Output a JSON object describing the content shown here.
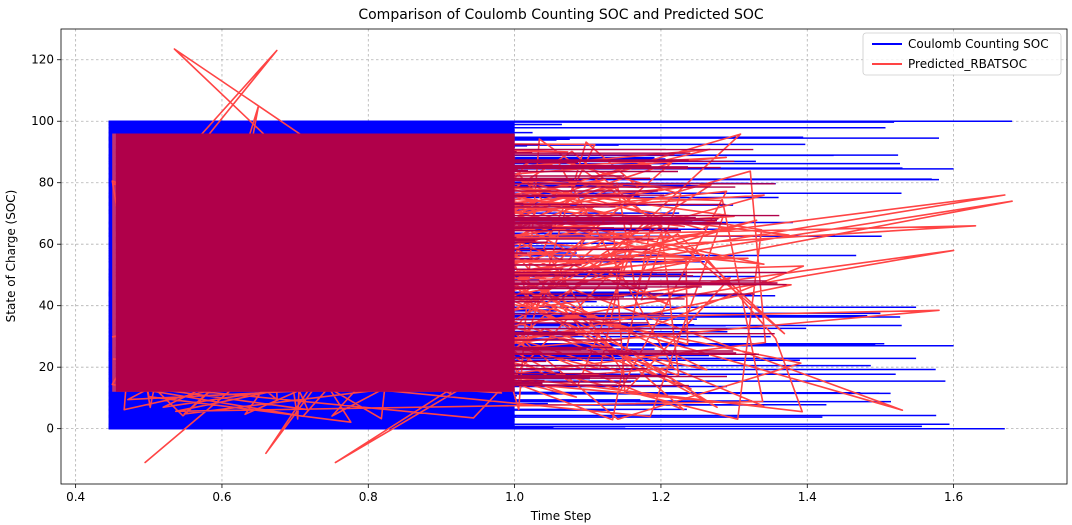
{
  "chart_data": {
    "type": "line",
    "title": "Comparison of Coulomb Counting SOC and Predicted SOC",
    "xlabel": "Time Step",
    "ylabel": "State of Charge (SOC)",
    "xlim": [
      0.38,
      1.755
    ],
    "ylim": [
      -18,
      130
    ],
    "xticks": [
      "0.4",
      "0.6",
      "0.8",
      "1.0",
      "1.2",
      "1.4",
      "1.6"
    ],
    "xtick_values": [
      0.4,
      0.6,
      0.8,
      1.0,
      1.2,
      1.4,
      1.6
    ],
    "yticks": [
      "0",
      "20",
      "40",
      "60",
      "80",
      "100",
      "120"
    ],
    "ytick_values": [
      0,
      20,
      40,
      60,
      80,
      100,
      120
    ],
    "grid": true,
    "legend_position": "top-right",
    "series": [
      {
        "name": "Coulomb Counting SOC",
        "color": "#0000ff",
        "dense_band": {
          "x": [
            0.445,
            1.0
          ],
          "y": [
            0,
            100
          ]
        },
        "extreme_points": [
          [
            0.445,
            100
          ],
          [
            1.68,
            100
          ],
          [
            0.445,
            0
          ],
          [
            1.67,
            0
          ],
          [
            1.58,
            94.5
          ],
          [
            1.6,
            84.5
          ],
          [
            1.58,
            81
          ],
          [
            1.5,
            37.5
          ],
          [
            1.6,
            27
          ]
        ]
      },
      {
        "name": "Predicted_RBATSOC",
        "color": "#ff4444",
        "dense_band": {
          "x": [
            0.45,
            1.0
          ],
          "y": [
            12,
            96
          ]
        },
        "extreme_points": [
          [
            0.535,
            123.5
          ],
          [
            0.675,
            123
          ],
          [
            0.65,
            105
          ],
          [
            0.495,
            -11
          ],
          [
            0.66,
            -8
          ],
          [
            0.755,
            -11
          ],
          [
            1.68,
            74
          ],
          [
            1.67,
            76
          ],
          [
            1.6,
            58
          ],
          [
            1.63,
            66
          ],
          [
            1.58,
            38.5
          ],
          [
            1.53,
            6
          ]
        ]
      }
    ]
  }
}
